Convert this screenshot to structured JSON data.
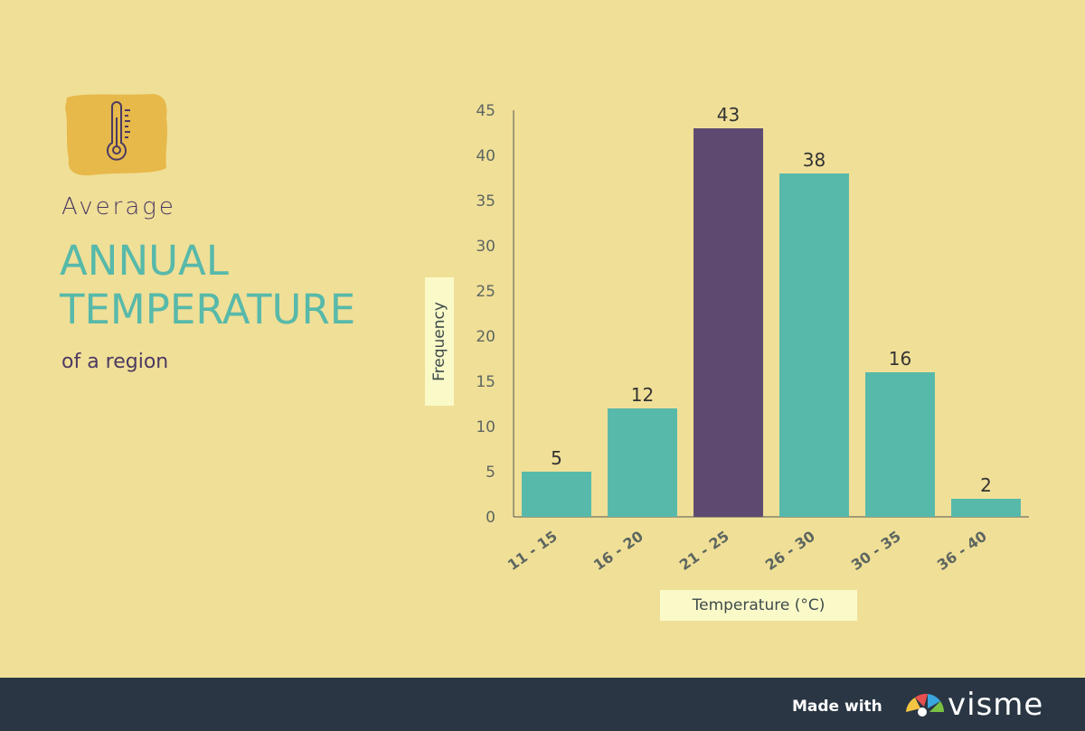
{
  "title": {
    "line1": "Average",
    "line2": "ANNUAL",
    "line3": "TEMPERATURE",
    "line4": "of a region"
  },
  "icons": {
    "badge": "thermometer-icon",
    "brand_mark": "visme-logo-icon"
  },
  "colors": {
    "background": "#f0df97",
    "bar": "#57b9aa",
    "bar_highlight": "#5e4a70",
    "badge": "#e7b94a",
    "footer": "#2a3644"
  },
  "chart_data": {
    "type": "bar",
    "categories": [
      "11 - 15",
      "16 - 20",
      "21 - 25",
      "26 - 30",
      "30 - 35",
      "36 - 40"
    ],
    "values": [
      5,
      12,
      43,
      38,
      16,
      2
    ],
    "highlight_index": 2,
    "xlabel": "Temperature (°C)",
    "ylabel": "Frequency",
    "ylim": [
      0,
      45
    ],
    "yticks": [
      0,
      5,
      10,
      15,
      20,
      25,
      30,
      35,
      40,
      45
    ],
    "grid": false,
    "legend": "none"
  },
  "footer": {
    "made_with": "Made with",
    "brand": "visme"
  }
}
